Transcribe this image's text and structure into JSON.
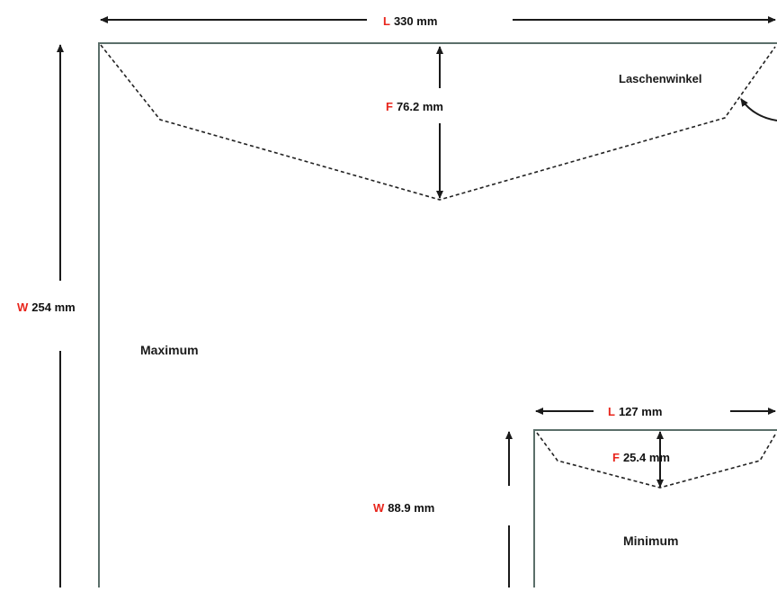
{
  "colors": {
    "background": "#ffffff",
    "outline": "#5b6f6a",
    "dimension": "#1a1a1a",
    "letter": "#e8251c",
    "text": "#111111"
  },
  "maximum": {
    "heading": "Maximum",
    "length": {
      "letter": "L",
      "value": "330 mm"
    },
    "width": {
      "letter": "W",
      "value": "254 mm"
    },
    "flap": {
      "letter": "F",
      "value": "76.2 mm"
    },
    "flap_angle_label": "Laschenwinkel"
  },
  "minimum": {
    "heading": "Minimum",
    "length": {
      "letter": "L",
      "value": "127 mm"
    },
    "width": {
      "letter": "W",
      "value": "88.9 mm"
    },
    "flap": {
      "letter": "F",
      "value": "25.4 mm"
    }
  }
}
